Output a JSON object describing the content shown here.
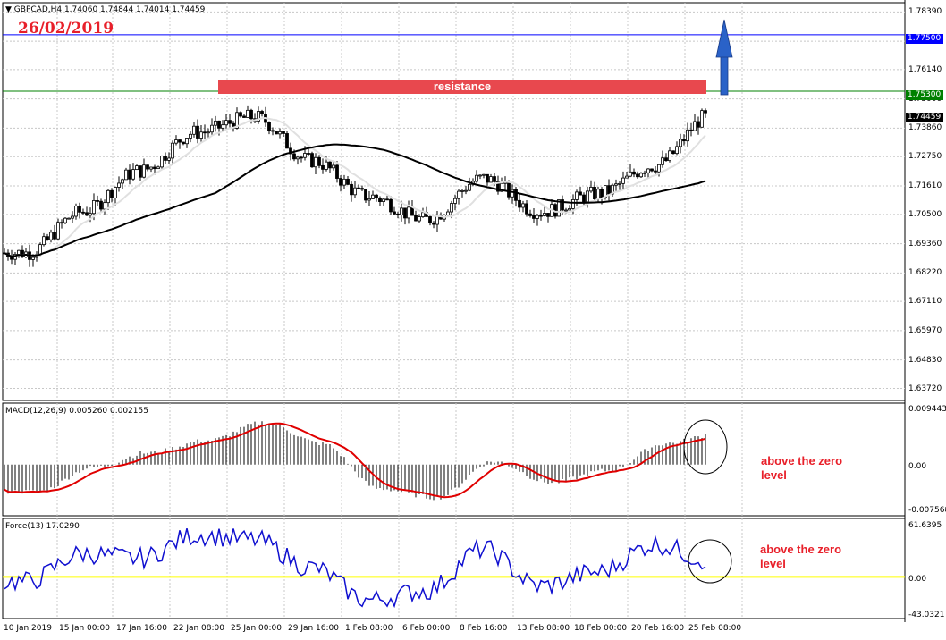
{
  "symbol_header": {
    "menu_icon": "triangle-down-icon",
    "text": "GBPCAD,H4  1.74060 1.74844 1.74014 1.74459"
  },
  "date_stamp": "26/02/2019",
  "resistance_label": "resistance",
  "colors": {
    "candle": "#000000",
    "ma_fast": "#ffffff",
    "ma_slow": "#000000",
    "resistance_band": "#e8484e",
    "blue_level": "#0000ff",
    "green_level": "#008000",
    "arrow": "#2a62c8",
    "macd_signal": "#e00000",
    "force_line": "#1010d0",
    "zero_line": "#ffff00",
    "annotation": "#e8202a"
  },
  "price_axis": {
    "ticks": [
      "1.78390",
      "1.77250",
      "1.76140",
      "1.75000",
      "1.73860",
      "1.72750",
      "1.71610",
      "1.70500",
      "1.69360",
      "1.68220",
      "1.67110",
      "1.65970",
      "1.64830",
      "1.63720"
    ],
    "tag_blue": "1.77500",
    "tag_green": "1.75300",
    "tag_current": "1.74459"
  },
  "macd": {
    "header": "MACD(12,26,9) 0.005260 0.002155",
    "ticks": [
      "0.009443",
      "0.00",
      "-0.007568"
    ],
    "annotation_line1": "above the zero",
    "annotation_line2": "level"
  },
  "force": {
    "header": "Force(13) 17.0290",
    "ticks": [
      "61.6395",
      "0.00",
      "-43.0321"
    ],
    "annotation_line1": "above the zero",
    "annotation_line2": "level"
  },
  "time_axis": [
    "10 Jan 2019",
    "15 Jan 00:00",
    "17 Jan 16:00",
    "22 Jan 08:00",
    "25 Jan 00:00",
    "29 Jan 16:00",
    "1 Feb 08:00",
    "6 Feb 00:00",
    "8 Feb 16:00",
    "13 Feb 08:00",
    "18 Feb 00:00",
    "20 Feb 16:00",
    "25 Feb 08:00"
  ],
  "chart_data": {
    "type": "candlestick",
    "symbol": "GBPCAD",
    "timeframe": "H4",
    "price_levels": [
      {
        "name": "resistance",
        "value": 1.753
      },
      {
        "value": 1.775
      }
    ],
    "close_anchors": [
      {
        "x_label": "10 Jan 2019",
        "close": 1.69
      },
      {
        "x_label": "15 Jan 00:00",
        "close": 1.706
      },
      {
        "x_label": "17 Jan 16:00",
        "close": 1.722
      },
      {
        "x_label": "22 Jan 08:00",
        "close": 1.737
      },
      {
        "x_label": "25 Jan 00:00",
        "close": 1.743
      },
      {
        "x_label": "29 Jan 16:00",
        "close": 1.726
      },
      {
        "x_label": "1 Feb 08:00",
        "close": 1.712
      },
      {
        "x_label": "6 Feb 00:00",
        "close": 1.703
      },
      {
        "x_label": "8 Feb 16:00",
        "close": 1.719
      },
      {
        "x_label": "13 Feb 08:00",
        "close": 1.706
      },
      {
        "x_label": "18 Feb 00:00",
        "close": 1.713
      },
      {
        "x_label": "20 Feb 16:00",
        "close": 1.724
      },
      {
        "x_label": "25 Feb 08:00",
        "close": 1.744
      }
    ],
    "macd_anchors": [
      -0.0045,
      -0.0005,
      0.002,
      0.004,
      0.007,
      0.0035,
      -0.004,
      -0.0055,
      0.0005,
      -0.003,
      -0.001,
      0.0035,
      0.0053
    ],
    "force_anchors": [
      -5,
      25,
      20,
      45,
      40,
      10,
      -25,
      -15,
      30,
      -10,
      5,
      35,
      17
    ],
    "price_range": [
      1.6325,
      1.7875
    ],
    "macd_range": [
      -0.0085,
      0.0102
    ],
    "force_range": [
      -45,
      63
    ]
  }
}
